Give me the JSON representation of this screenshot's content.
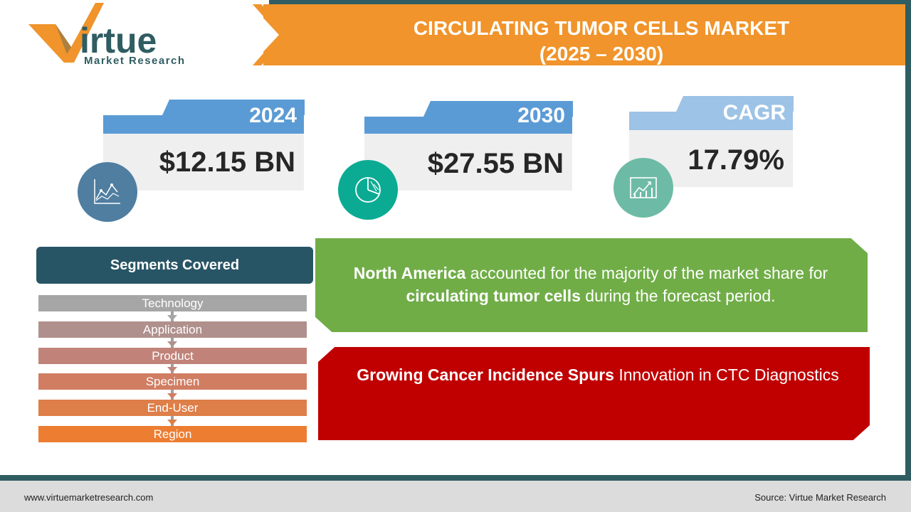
{
  "header": {
    "title_line1": "CIRCULATING TUMOR CELLS MARKET",
    "title_line2": "(2025 – 2030)"
  },
  "logo": {
    "wordmark": "Virtue",
    "tagline": "Market Research",
    "colors": {
      "orange": "#f0942b",
      "teal": "#2f5d62"
    }
  },
  "stats": [
    {
      "label": "2024",
      "value": "$12.15 BN",
      "icon": "line-chart-icon",
      "icon_color": "#4f7ea0"
    },
    {
      "label": "2030",
      "value": "$27.55 BN",
      "icon": "pie-chart-icon",
      "icon_color": "#0bab93"
    },
    {
      "label": "CAGR",
      "value": "17.79%",
      "icon": "growth-chart-icon",
      "icon_color": "#6dbba6"
    }
  ],
  "segments": {
    "title": "Segments Covered",
    "items": [
      "Technology",
      "Application",
      "Product",
      "Specimen",
      "End-User",
      "Region"
    ]
  },
  "insight": {
    "bold1": "North America",
    "text1": " accounted for the majority of the market share for ",
    "bold2": "circulating tumor cells",
    "text2": " during the forecast period."
  },
  "trend": {
    "bold": "Growing Cancer Incidence Spurs",
    "text": " Innovation in CTC Diagnostics"
  },
  "footer": {
    "website": "www.virtuemarketresearch.com",
    "source": "Source: Virtue Market Research"
  },
  "colors": {
    "header_orange": "#f0942b",
    "dark_teal": "#2f5d62",
    "card_blue": "#5b9bd5",
    "green": "#70ad47",
    "red": "#c00000"
  }
}
